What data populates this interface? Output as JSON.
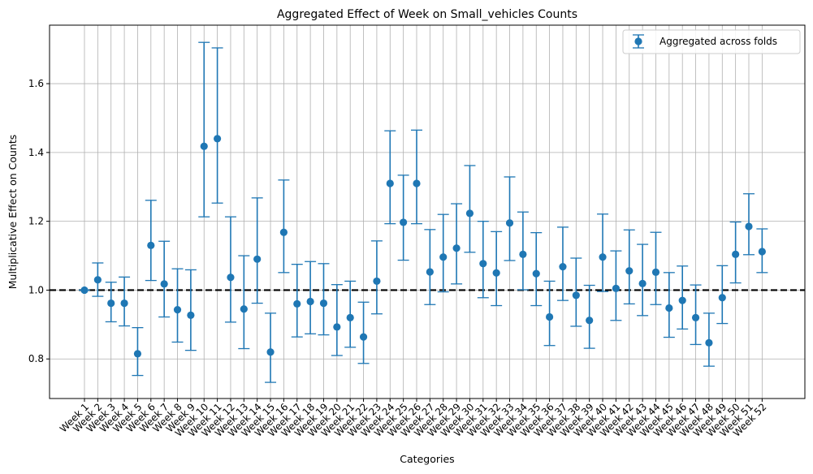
{
  "chart_data": {
    "type": "scatter",
    "title": "Aggregated Effect of Week on Small_vehicles Counts",
    "xlabel": "Categories",
    "ylabel": "Multiplicative Effect on Counts",
    "ylim": [
      0.685,
      1.77
    ],
    "yticks": [
      0.8,
      1.0,
      1.2,
      1.4,
      1.6
    ],
    "ytick_labels": [
      "0.8",
      "1.0",
      "1.2",
      "1.4",
      "1.6"
    ],
    "grid": true,
    "reference_line": 1.0,
    "legend": {
      "position": "top-right",
      "entries": [
        "Aggregated across folds"
      ]
    },
    "colors": {
      "series": "#1f77b4",
      "grid": "#b0b0b0",
      "reference": "#000000"
    },
    "categories": [
      "Week 1",
      "Week 2",
      "Week 3",
      "Week 4",
      "Week 5",
      "Week 6",
      "Week 7",
      "Week 8",
      "Week 9",
      "Week 10",
      "Week 11",
      "Week 12",
      "Week 13",
      "Week 14",
      "Week 15",
      "Week 16",
      "Week 17",
      "Week 18",
      "Week 19",
      "Week 20",
      "Week 21",
      "Week 22",
      "Week 23",
      "Week 24",
      "Week 25",
      "Week 26",
      "Week 27",
      "Week 28",
      "Week 29",
      "Week 30",
      "Week 31",
      "Week 32",
      "Week 33",
      "Week 34",
      "Week 35",
      "Week 36",
      "Week 37",
      "Week 38",
      "Week 39",
      "Week 40",
      "Week 41",
      "Week 42",
      "Week 43",
      "Week 44",
      "Week 45",
      "Week 46",
      "Week 47",
      "Week 48",
      "Week 49",
      "Week 50",
      "Week 51",
      "Week 52"
    ],
    "series": [
      {
        "name": "Aggregated across folds",
        "values": [
          1.0,
          1.03,
          0.962,
          0.962,
          0.815,
          1.13,
          1.018,
          0.943,
          0.927,
          1.418,
          1.44,
          1.037,
          0.945,
          1.09,
          0.82,
          1.168,
          0.96,
          0.967,
          0.962,
          0.893,
          0.92,
          0.864,
          1.026,
          1.31,
          1.197,
          1.31,
          1.053,
          1.096,
          1.122,
          1.223,
          1.077,
          1.05,
          1.195,
          1.104,
          1.048,
          0.922,
          1.068,
          0.985,
          0.912,
          1.096,
          1.005,
          1.056,
          1.019,
          1.052,
          0.948,
          0.97,
          0.92,
          0.847,
          0.978,
          1.104,
          1.185,
          1.112
        ],
        "lower": [
          1.0,
          0.982,
          0.908,
          0.896,
          0.752,
          1.028,
          0.922,
          0.849,
          0.825,
          1.213,
          1.253,
          0.907,
          0.83,
          0.962,
          0.732,
          1.051,
          0.864,
          0.873,
          0.87,
          0.81,
          0.834,
          0.787,
          0.931,
          1.193,
          1.087,
          1.193,
          0.958,
          0.995,
          1.018,
          1.11,
          0.978,
          0.955,
          1.086,
          1.001,
          0.955,
          0.839,
          0.97,
          0.895,
          0.831,
          0.996,
          0.912,
          0.96,
          0.926,
          0.958,
          0.863,
          0.887,
          0.842,
          0.779,
          0.903,
          1.021,
          1.103,
          1.051
        ],
        "upper": [
          1.0,
          1.079,
          1.023,
          1.038,
          0.891,
          1.261,
          1.142,
          1.062,
          1.059,
          1.72,
          1.704,
          1.213,
          1.1,
          1.268,
          0.933,
          1.32,
          1.075,
          1.083,
          1.077,
          1.016,
          1.026,
          0.965,
          1.143,
          1.463,
          1.334,
          1.465,
          1.176,
          1.22,
          1.251,
          1.362,
          1.2,
          1.17,
          1.329,
          1.227,
          1.167,
          1.026,
          1.183,
          1.093,
          1.014,
          1.221,
          1.114,
          1.175,
          1.133,
          1.168,
          1.051,
          1.07,
          1.015,
          0.933,
          1.071,
          1.198,
          1.28,
          1.178
        ]
      }
    ]
  }
}
